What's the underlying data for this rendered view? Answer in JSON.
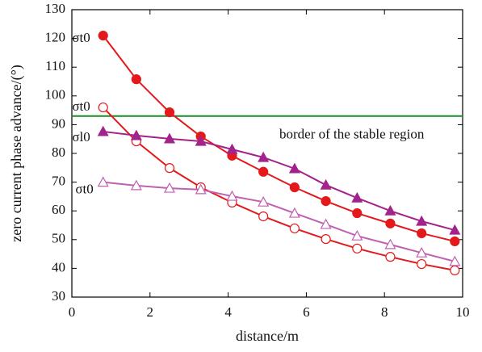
{
  "chart_data": {
    "type": "line",
    "x_label": "distance/m",
    "y_label": "zero current phase advance/(°)",
    "x": [
      0.8,
      1.65,
      2.5,
      3.3,
      4.1,
      4.9,
      5.7,
      6.5,
      7.3,
      8.15,
      8.95,
      9.8
    ],
    "series": [
      {
        "name": "σt0",
        "color": "#e3191b",
        "marker": "circle",
        "filled": true,
        "values": [
          121,
          105.8,
          94.3,
          85.9,
          79.2,
          73.6,
          68.2,
          63.4,
          59.2,
          55.6,
          52.2,
          49.4
        ]
      },
      {
        "name": "σt0",
        "color": "#e3191b",
        "marker": "circle",
        "filled": false,
        "values": [
          96,
          84.2,
          74.9,
          68.2,
          62.9,
          58.1,
          53.9,
          50.2,
          46.9,
          44,
          41.5,
          39.3
        ]
      },
      {
        "name": "σl0",
        "color": "#a3228c",
        "marker": "triangle",
        "filled": true,
        "values": [
          87.6,
          86.2,
          85.1,
          84.2,
          81.4,
          78.6,
          74.7,
          69,
          64.5,
          60,
          56.4,
          53.3
        ]
      },
      {
        "name": "σt0",
        "color": "#c060b0",
        "marker": "triangle",
        "filled": false,
        "values": [
          70,
          68.8,
          67.9,
          67.4,
          65.1,
          63.1,
          59.2,
          55.3,
          51.3,
          48.3,
          45.4,
          42.4
        ]
      }
    ],
    "reference_line": {
      "value": 93,
      "color": "#1a8a2a",
      "label": "border of the stable region"
    },
    "xlim": [
      0,
      10
    ],
    "xticks": [
      0,
      2,
      4,
      6,
      8,
      10
    ],
    "ylim": [
      30,
      130
    ],
    "yticks": [
      30,
      40,
      50,
      60,
      70,
      80,
      90,
      100,
      110,
      120,
      130
    ]
  }
}
